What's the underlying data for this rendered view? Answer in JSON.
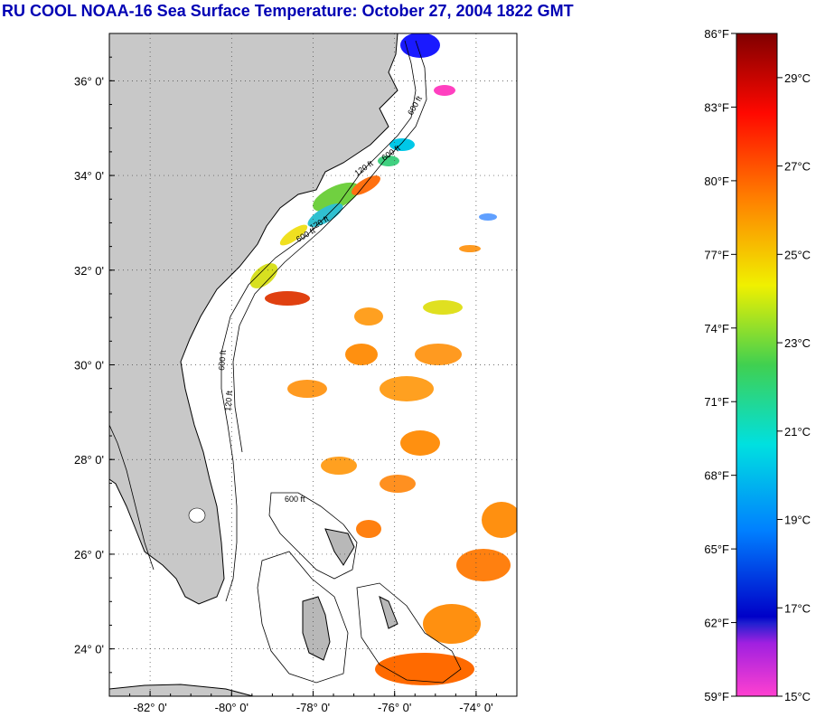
{
  "title": "RU COOL  NOAA-16  Sea Surface Temperature:  October 27, 2004 1822 GMT",
  "map": {
    "lon_range": [
      -83,
      -73
    ],
    "lat_range": [
      23,
      37
    ],
    "lon_ticks": [
      {
        "value": -82,
        "label": "-82° 0'"
      },
      {
        "value": -80,
        "label": "-80° 0'"
      },
      {
        "value": -78,
        "label": "-78° 0'"
      },
      {
        "value": -76,
        "label": "-76° 0'"
      },
      {
        "value": -74,
        "label": "-74° 0'"
      }
    ],
    "lat_ticks": [
      {
        "value": 24,
        "label": "24° 0'"
      },
      {
        "value": 26,
        "label": "26° 0'"
      },
      {
        "value": 28,
        "label": "28° 0'"
      },
      {
        "value": 30,
        "label": "30° 0'"
      },
      {
        "value": 32,
        "label": "32° 0'"
      },
      {
        "value": 34,
        "label": "34° 0'"
      },
      {
        "value": 36,
        "label": "36° 0'"
      }
    ],
    "land_color": "#c8c8c8",
    "grid": true
  },
  "colorbar": {
    "fahrenheit_labels": [
      "86°F",
      "83°F",
      "80°F",
      "77°F",
      "74°F",
      "71°F",
      "68°F",
      "65°F",
      "62°F",
      "59°F"
    ],
    "celsius_labels": [
      "29°C",
      "27°C",
      "25°C",
      "23°C",
      "21°C",
      "19°C",
      "17°C",
      "15°C"
    ],
    "range_f": [
      59,
      86
    ]
  },
  "contour_labels": [
    "600 ft",
    "120 ft",
    "600 ft",
    "120 ft",
    "600 ft",
    "600 ft",
    "120 ft",
    "600 ft"
  ]
}
